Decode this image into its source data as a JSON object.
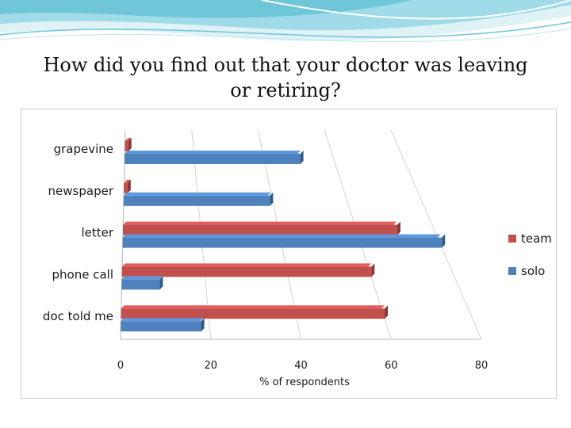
{
  "slide": {
    "title": "How did you find out that your doctor was leaving\nor retiring?"
  },
  "colors": {
    "team": "#c0504d",
    "solo": "#4f81bd",
    "deco_teal": "#6ec6d8",
    "deco_light": "#bfe6ee"
  },
  "chart_data": {
    "type": "bar",
    "orientation": "horizontal",
    "style": "3d",
    "categories": [
      "grapevine",
      "newspaper",
      "letter",
      "phone call",
      "doc told me"
    ],
    "series": [
      {
        "name": "team",
        "values": [
          1,
          1,
          70,
          60,
          60
        ]
      },
      {
        "name": "solo",
        "values": [
          50,
          39,
          80,
          9,
          18
        ]
      }
    ],
    "xlabel": "% of respondents",
    "xlim": [
      0,
      80
    ],
    "xticks": [
      0,
      20,
      40,
      60,
      80
    ],
    "grid": true,
    "legend_position": "right"
  }
}
